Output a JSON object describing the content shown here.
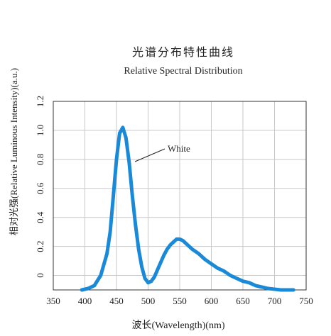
{
  "chart_data": {
    "type": "line",
    "title": "光谱分布特性曲线",
    "subtitle": "Relative Spectral Distribution",
    "xlabel": "波长(Wavelength)(nm)",
    "ylabel": "相对光强(Relative Luminous Intensity)(a.u.)",
    "xlim": [
      350,
      750
    ],
    "ylim": [
      -0.1,
      1.2
    ],
    "x_ticks": [
      350,
      400,
      450,
      500,
      550,
      600,
      650,
      700,
      750
    ],
    "y_ticks": [
      0,
      0.2,
      0.4,
      0.6,
      0.8,
      1.0,
      1.2
    ],
    "y_tick_labels": [
      "0",
      "0.2",
      "0.4",
      "0.6",
      "0.8",
      "1.0",
      "1.2"
    ],
    "grid": true,
    "series": [
      {
        "name": "White",
        "color": "#1a8ad8",
        "x": [
          395,
          405,
          415,
          425,
          435,
          440,
          445,
          450,
          455,
          460,
          465,
          470,
          475,
          480,
          485,
          490,
          495,
          500,
          505,
          510,
          515,
          520,
          525,
          530,
          535,
          540,
          545,
          550,
          555,
          560,
          570,
          580,
          590,
          600,
          610,
          620,
          630,
          640,
          650,
          660,
          670,
          680,
          690,
          700,
          710,
          720,
          730
        ],
        "y": [
          -0.1,
          -0.09,
          -0.07,
          0.0,
          0.15,
          0.3,
          0.55,
          0.8,
          0.98,
          1.02,
          0.95,
          0.78,
          0.55,
          0.35,
          0.18,
          0.06,
          -0.02,
          -0.05,
          -0.04,
          -0.01,
          0.04,
          0.09,
          0.14,
          0.18,
          0.21,
          0.23,
          0.25,
          0.25,
          0.24,
          0.22,
          0.18,
          0.15,
          0.11,
          0.08,
          0.05,
          0.03,
          0.0,
          -0.02,
          -0.04,
          -0.05,
          -0.07,
          -0.08,
          -0.09,
          -0.095,
          -0.1,
          -0.1,
          -0.1
        ]
      }
    ],
    "annotation": {
      "text": "White"
    }
  }
}
